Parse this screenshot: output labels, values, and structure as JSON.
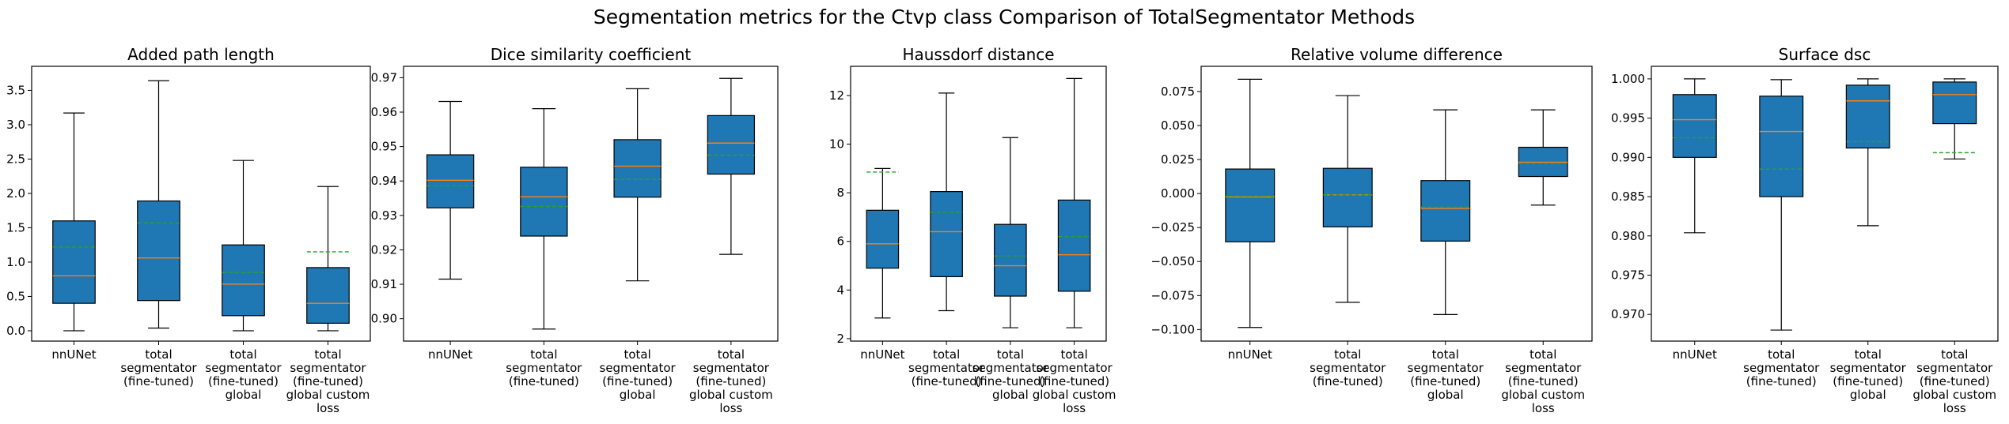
{
  "figure": {
    "title": "Segmentation metrics for the Ctvp class Comparison of TotalSegmentator Methods"
  },
  "colors": {
    "box_fill": "#1f77b4",
    "median_line": "#ff7f0e",
    "mean_line": "#2ca02c",
    "whisker": "#000000"
  },
  "chart_data": [
    {
      "type": "box",
      "title": "Added path length",
      "categories": [
        [
          "nnUNet"
        ],
        [
          "total",
          "segmentator",
          "(fine-tuned)"
        ],
        [
          "total",
          "segmentator",
          "(fine-tuned)",
          "global"
        ],
        [
          "total",
          "segmentator",
          "(fine-tuned)",
          "global custom",
          "loss"
        ]
      ],
      "ylim": [
        -0.15,
        3.85
      ],
      "yticks": [
        0.0,
        0.5,
        1.0,
        1.5,
        2.0,
        2.5,
        3.0,
        3.5
      ],
      "ytick_labels": [
        "0.0",
        "0.5",
        "1.0",
        "1.5",
        "2.0",
        "2.5",
        "3.0",
        "3.5"
      ],
      "boxes": [
        {
          "min": 0.0,
          "q1": 0.4,
          "median": 0.8,
          "q3": 1.6,
          "max": 3.17,
          "mean": 1.22
        },
        {
          "min": 0.04,
          "q1": 0.44,
          "median": 1.06,
          "q3": 1.89,
          "max": 3.64,
          "mean": 1.57
        },
        {
          "min": 0.0,
          "q1": 0.22,
          "median": 0.68,
          "q3": 1.25,
          "max": 2.48,
          "mean": 0.85
        },
        {
          "min": 0.0,
          "q1": 0.11,
          "median": 0.4,
          "q3": 0.92,
          "max": 2.1,
          "mean": 1.15
        }
      ]
    },
    {
      "type": "box",
      "title": "Dice similarity coefficient",
      "categories": [
        [
          "nnUNet"
        ],
        [
          "total",
          "segmentator",
          "(fine-tuned)"
        ],
        [
          "total",
          "segmentator",
          "(fine-tuned)",
          "global"
        ],
        [
          "total",
          "segmentator",
          "(fine-tuned)",
          "global custom",
          "loss"
        ]
      ],
      "ylim": [
        0.8935,
        0.9733
      ],
      "yticks": [
        0.9,
        0.91,
        0.92,
        0.93,
        0.94,
        0.95,
        0.96,
        0.97
      ],
      "ytick_labels": [
        "0.90",
        "0.91",
        "0.92",
        "0.93",
        "0.94",
        "0.95",
        "0.96",
        "0.97"
      ],
      "boxes": [
        {
          "min": 0.9115,
          "q1": 0.9322,
          "median": 0.9402,
          "q3": 0.9476,
          "max": 0.9631,
          "mean": 0.9386
        },
        {
          "min": 0.897,
          "q1": 0.924,
          "median": 0.9354,
          "q3": 0.944,
          "max": 0.961,
          "mean": 0.9326
        },
        {
          "min": 0.911,
          "q1": 0.9353,
          "median": 0.9443,
          "q3": 0.952,
          "max": 0.9668,
          "mean": 0.9405
        },
        {
          "min": 0.9187,
          "q1": 0.942,
          "median": 0.951,
          "q3": 0.959,
          "max": 0.9698,
          "mean": 0.9475
        }
      ]
    },
    {
      "type": "box",
      "title": "Haussdorf distance",
      "categories": [
        [
          "nnUNet"
        ],
        [
          "total",
          "segmentator",
          "(fine-tuned)"
        ],
        [
          "total",
          "segmentator",
          "(fine-tuned)",
          "global"
        ],
        [
          "total",
          "segmentator",
          "(fine-tuned)",
          "global custom",
          "loss"
        ]
      ],
      "ylim": [
        1.9,
        13.2
      ],
      "yticks": [
        2,
        4,
        6,
        8,
        10,
        12
      ],
      "ytick_labels": [
        "2",
        "4",
        "6",
        "8",
        "10",
        "12"
      ],
      "boxes": [
        {
          "min": 2.85,
          "q1": 4.9,
          "median": 5.9,
          "q3": 7.28,
          "max": 9.0,
          "mean": 8.85
        },
        {
          "min": 3.15,
          "q1": 4.55,
          "median": 6.4,
          "q3": 8.05,
          "max": 12.1,
          "mean": 7.2
        },
        {
          "min": 2.45,
          "q1": 3.75,
          "median": 5.0,
          "q3": 6.7,
          "max": 10.27,
          "mean": 5.4
        },
        {
          "min": 2.45,
          "q1": 3.95,
          "median": 5.45,
          "q3": 7.7,
          "max": 12.7,
          "mean": 6.2
        }
      ]
    },
    {
      "type": "box",
      "title": "Relative volume difference",
      "categories": [
        [
          "nnUNet"
        ],
        [
          "total",
          "segmentator",
          "(fine-tuned)"
        ],
        [
          "total",
          "segmentator",
          "(fine-tuned)",
          "global"
        ],
        [
          "total",
          "segmentator",
          "(fine-tuned)",
          "global custom",
          "loss"
        ]
      ],
      "ylim": [
        -0.1085,
        0.0935
      ],
      "yticks": [
        -0.1,
        -0.075,
        -0.05,
        -0.025,
        0.0,
        0.025,
        0.05,
        0.075
      ],
      "ytick_labels": [
        "−0.100",
        "−0.075",
        "−0.050",
        "−0.025",
        "0.000",
        "0.025",
        "0.050",
        "0.075"
      ],
      "boxes": [
        {
          "min": -0.0985,
          "q1": -0.0355,
          "median": -0.0025,
          "q3": 0.018,
          "max": 0.084,
          "mean": -0.002
        },
        {
          "min": -0.08,
          "q1": -0.0245,
          "median": -0.001,
          "q3": 0.0185,
          "max": 0.072,
          "mean": -0.001
        },
        {
          "min": -0.089,
          "q1": -0.035,
          "median": -0.011,
          "q3": 0.0095,
          "max": 0.0615,
          "mean": -0.01
        },
        {
          "min": -0.0085,
          "q1": 0.0125,
          "median": 0.023,
          "q3": 0.034,
          "max": 0.0615,
          "mean": 0.022
        }
      ]
    },
    {
      "type": "box",
      "title": "Surface dsc",
      "categories": [
        [
          "nnUNet"
        ],
        [
          "total",
          "segmentator",
          "(fine-tuned)"
        ],
        [
          "total",
          "segmentator",
          "(fine-tuned)",
          "global"
        ],
        [
          "total",
          "segmentator",
          "(fine-tuned)",
          "global custom",
          "loss"
        ]
      ],
      "ylim": [
        0.9666,
        1.0016
      ],
      "yticks": [
        0.97,
        0.975,
        0.98,
        0.985,
        0.99,
        0.995,
        1.0
      ],
      "ytick_labels": [
        "0.970",
        "0.975",
        "0.980",
        "0.985",
        "0.990",
        "0.995",
        "1.000"
      ],
      "boxes": [
        {
          "min": 0.9804,
          "q1": 0.99,
          "median": 0.9948,
          "q3": 0.998,
          "max": 1.0,
          "mean": 0.9925
        },
        {
          "min": 0.968,
          "q1": 0.985,
          "median": 0.9933,
          "q3": 0.9978,
          "max": 0.9999,
          "mean": 0.9885
        },
        {
          "min": 0.9813,
          "q1": 0.9912,
          "median": 0.9972,
          "q3": 0.9992,
          "max": 1.0,
          "mean": 0.992
        },
        {
          "min": 0.9898,
          "q1": 0.9943,
          "median": 0.998,
          "q3": 0.9996,
          "max": 1.0,
          "mean": 0.9906
        }
      ]
    }
  ]
}
